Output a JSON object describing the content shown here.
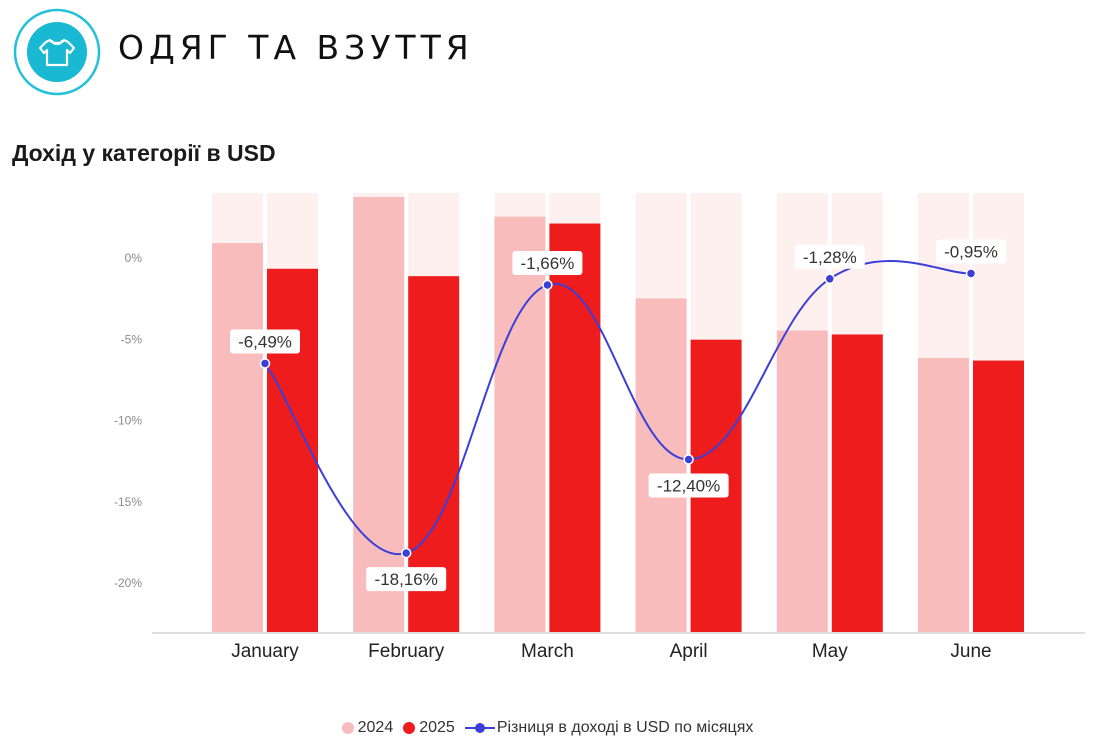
{
  "header": {
    "title": "ОДЯГ ТА ВЗУТТЯ",
    "icon": "t-shirt-icon"
  },
  "colors": {
    "bar_2024": "#f8bcbc",
    "bar_2025": "#ee1c1c",
    "bar_background": "#fff0f0",
    "line": "#3b3fd8",
    "icon_ring": "#23c0d9",
    "axis": "#dddddd",
    "tick_text": "#8a8a8a"
  },
  "chart_data": {
    "type": "bar",
    "title": "Дохід у категорії в USD",
    "categories": [
      "January",
      "February",
      "March",
      "April",
      "May",
      "June"
    ],
    "series": [
      {
        "name": "2024",
        "type": "bar",
        "values": [
          0.894,
          1.0,
          0.955,
          0.767,
          0.693,
          0.63
        ],
        "color": "#f8bcbc"
      },
      {
        "name": "2025",
        "type": "bar",
        "values": [
          0.835,
          0.818,
          0.939,
          0.672,
          0.684,
          0.624
        ],
        "color": "#ee1c1c"
      },
      {
        "name": "Різниця в доході в USD по місяцях",
        "type": "line",
        "axis": "y-left-percent",
        "values": [
          -6.49,
          -18.16,
          -1.66,
          -12.4,
          -1.28,
          -0.95
        ],
        "labels": [
          "-6,49%",
          "-18,16%",
          "-1,66%",
          "-12,40%",
          "-1,28%",
          "-0,95%"
        ],
        "color": "#3b3fd8"
      }
    ],
    "y_axis": {
      "ticks": [
        "0%",
        "-5%",
        "-10%",
        "-15%",
        "-20%"
      ],
      "tick_values": [
        0,
        -5,
        -10,
        -15,
        -20
      ],
      "range": [
        -23,
        4
      ]
    },
    "xlabel": "",
    "ylabel": "",
    "grid": false,
    "legend_position": "bottom"
  }
}
